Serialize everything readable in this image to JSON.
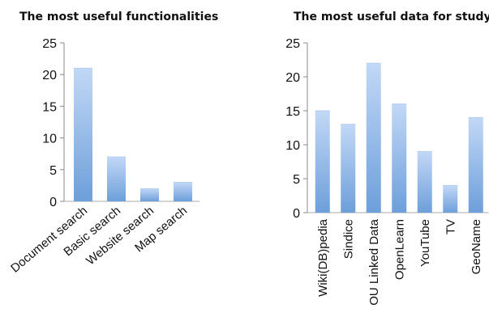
{
  "chart_data": [
    {
      "type": "bar",
      "title": "The most useful functionalities",
      "categories": [
        "Document search",
        "Basic search",
        "Website search",
        "Map search"
      ],
      "values": [
        21,
        7,
        2,
        3
      ],
      "ylim": [
        0,
        25
      ],
      "yticks": [
        0,
        5,
        10,
        15,
        20,
        25
      ],
      "grid": false,
      "colors": {
        "bar_top": "#c2d8f6",
        "bar_bottom": "#6d9fda"
      }
    },
    {
      "type": "bar",
      "title": "The most useful data for study",
      "categories": [
        "Wiki(DB)pedia",
        "Sindice",
        "OU Linked Data",
        "OpenLearn",
        "YouTube",
        "TV",
        "GeoName"
      ],
      "values": [
        15,
        13,
        22,
        16,
        9,
        4,
        14
      ],
      "ylim": [
        0,
        25
      ],
      "yticks": [
        0,
        5,
        10,
        15,
        20,
        25
      ],
      "grid": false,
      "colors": {
        "bar_top": "#c2d8f6",
        "bar_bottom": "#6d9fda"
      }
    }
  ]
}
